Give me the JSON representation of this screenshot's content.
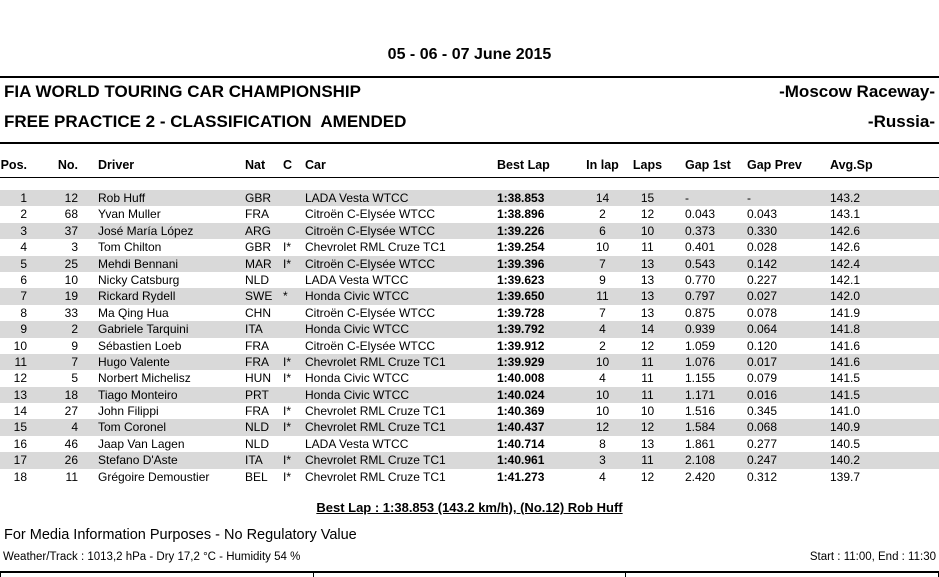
{
  "header": {
    "date": "05 - 06 - 07 June 2015",
    "championship": "FIA WORLD TOURING CAR CHAMPIONSHIP",
    "venue": "-Moscow Raceway-",
    "session": "FREE PRACTICE 2 - CLASSIFICATION  AMENDED",
    "country": "-Russia-"
  },
  "table": {
    "columns": [
      "Pos.",
      "No.",
      "Driver",
      "Nat",
      "C",
      "Car",
      "Best Lap",
      "In lap",
      "Laps",
      "Gap 1st",
      "Gap Prev",
      "Avg.Sp"
    ],
    "column_keys": [
      "pos",
      "no",
      "driver",
      "nat",
      "c",
      "car",
      "best-lap",
      "in-lap",
      "laps",
      "gap-1st",
      "gap-prev",
      "avg-sp"
    ],
    "rows": [
      [
        "1",
        "12",
        "Rob Huff",
        "GBR",
        "",
        "LADA Vesta WTCC",
        "1:38.853",
        "14",
        "15",
        "-",
        "-",
        "143.2"
      ],
      [
        "2",
        "68",
        "Yvan Muller",
        "FRA",
        "",
        "Citroën C-Elysée WTCC",
        "1:38.896",
        "2",
        "12",
        "0.043",
        "0.043",
        "143.1"
      ],
      [
        "3",
        "37",
        "José María López",
        "ARG",
        "",
        "Citroën C-Elysée WTCC",
        "1:39.226",
        "6",
        "10",
        "0.373",
        "0.330",
        "142.6"
      ],
      [
        "4",
        "3",
        "Tom Chilton",
        "GBR",
        "I*",
        "Chevrolet RML Cruze TC1",
        "1:39.254",
        "10",
        "11",
        "0.401",
        "0.028",
        "142.6"
      ],
      [
        "5",
        "25",
        "Mehdi Bennani",
        "MAR",
        "I*",
        "Citroën C-Elysée WTCC",
        "1:39.396",
        "7",
        "13",
        "0.543",
        "0.142",
        "142.4"
      ],
      [
        "6",
        "10",
        "Nicky Catsburg",
        "NLD",
        "",
        "LADA Vesta WTCC",
        "1:39.623",
        "9",
        "13",
        "0.770",
        "0.227",
        "142.1"
      ],
      [
        "7",
        "19",
        "Rickard Rydell",
        "SWE",
        "*",
        "Honda Civic WTCC",
        "1:39.650",
        "11",
        "13",
        "0.797",
        "0.027",
        "142.0"
      ],
      [
        "8",
        "33",
        "Ma Qing Hua",
        "CHN",
        "",
        "Citroën C-Elysée WTCC",
        "1:39.728",
        "7",
        "13",
        "0.875",
        "0.078",
        "141.9"
      ],
      [
        "9",
        "2",
        "Gabriele Tarquini",
        "ITA",
        "",
        "Honda Civic WTCC",
        "1:39.792",
        "4",
        "14",
        "0.939",
        "0.064",
        "141.8"
      ],
      [
        "10",
        "9",
        "Sébastien Loeb",
        "FRA",
        "",
        "Citroën C-Elysée WTCC",
        "1:39.912",
        "2",
        "12",
        "1.059",
        "0.120",
        "141.6"
      ],
      [
        "11",
        "7",
        "Hugo Valente",
        "FRA",
        "I*",
        "Chevrolet RML Cruze TC1",
        "1:39.929",
        "10",
        "11",
        "1.076",
        "0.017",
        "141.6"
      ],
      [
        "12",
        "5",
        "Norbert Michelisz",
        "HUN",
        "I*",
        "Honda Civic WTCC",
        "1:40.008",
        "4",
        "11",
        "1.155",
        "0.079",
        "141.5"
      ],
      [
        "13",
        "18",
        "Tiago Monteiro",
        "PRT",
        "",
        "Honda Civic WTCC",
        "1:40.024",
        "10",
        "11",
        "1.171",
        "0.016",
        "141.5"
      ],
      [
        "14",
        "27",
        "John Filippi",
        "FRA",
        "I*",
        "Chevrolet RML Cruze TC1",
        "1:40.369",
        "10",
        "10",
        "1.516",
        "0.345",
        "141.0"
      ],
      [
        "15",
        "4",
        "Tom Coronel",
        "NLD",
        "I*",
        "Chevrolet RML Cruze TC1",
        "1:40.437",
        "12",
        "12",
        "1.584",
        "0.068",
        "140.9"
      ],
      [
        "16",
        "46",
        "Jaap Van Lagen",
        "NLD",
        "",
        "LADA Vesta WTCC",
        "1:40.714",
        "8",
        "13",
        "1.861",
        "0.277",
        "140.5"
      ],
      [
        "17",
        "26",
        "Stefano D'Aste",
        "ITA",
        "I*",
        "Chevrolet RML Cruze TC1",
        "1:40.961",
        "3",
        "11",
        "2.108",
        "0.247",
        "140.2"
      ],
      [
        "18",
        "11",
        "Grégoire Demoustier",
        "BEL",
        "I*",
        "Chevrolet RML Cruze TC1",
        "1:41.273",
        "4",
        "12",
        "2.420",
        "0.312",
        "139.7"
      ]
    ]
  },
  "summary": {
    "best_lap_line": "Best Lap : 1:38.853 (143.2 km/h), (No.12) Rob Huff"
  },
  "footer": {
    "media_note": "For Media Information Purposes - No Regulatory Value",
    "weather": "Weather/Track : 1013,2 hPa - Dry 17,2 °C - Humidity 54 %",
    "session_time": "Start : 11:00, End : 11:30"
  },
  "colors": {
    "row_stripe": "#d9d9d9",
    "text": "#000000",
    "background": "#ffffff"
  }
}
